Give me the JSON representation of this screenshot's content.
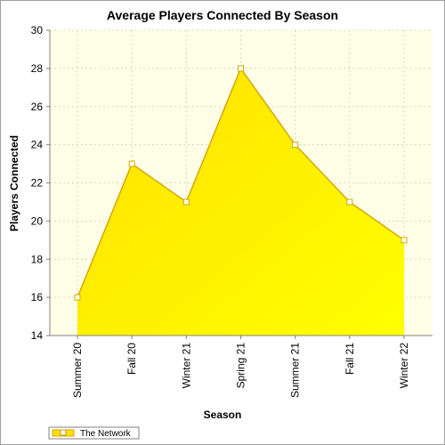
{
  "chart_data": {
    "type": "area",
    "title": "Average Players Connected By Season",
    "xlabel": "Season",
    "ylabel": "Players Connected",
    "categories": [
      "Summer 20",
      "Fall 20",
      "Winter 21",
      "Spring 21",
      "Summer 21",
      "Fall 21",
      "Winter 22"
    ],
    "series": [
      {
        "name": "The Network",
        "values": [
          16,
          23,
          21,
          28,
          24,
          21,
          19
        ]
      }
    ],
    "ylim": [
      14,
      30
    ],
    "yticks": [
      14,
      16,
      18,
      20,
      22,
      24,
      26,
      28,
      30
    ],
    "grid": true,
    "legend_position": "bottom-left",
    "colors": {
      "fill_start": "#ffe000",
      "fill_end": "#ffff00",
      "line": "#d4a800",
      "plot_bg": "#ffffe8",
      "grid": "#d8d8b0",
      "marker_fill": "#ffffff"
    }
  }
}
